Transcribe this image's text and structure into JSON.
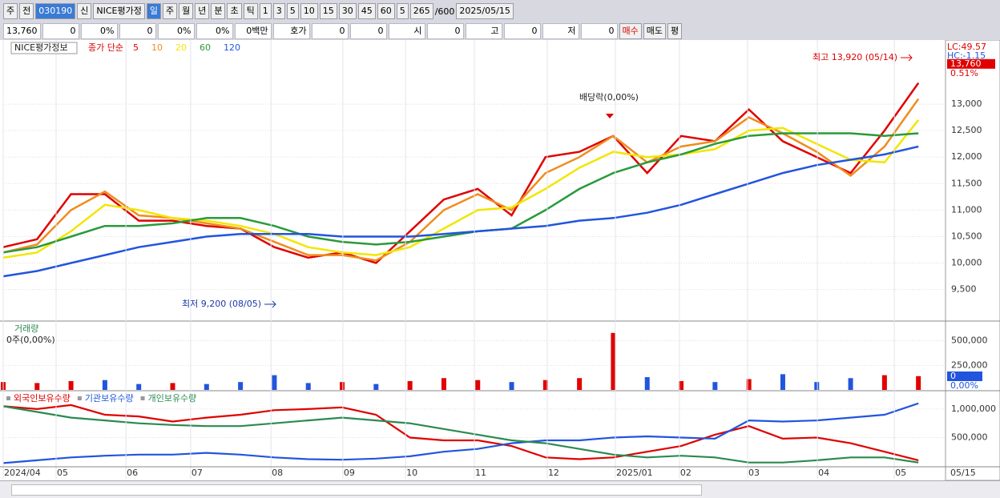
{
  "toolbar": {
    "market": "주",
    "prev": "전",
    "code": "030190",
    "name": "NICE평가정",
    "new": "신",
    "periods": [
      "일",
      "주",
      "월",
      "년",
      "분",
      "초",
      "틱"
    ],
    "intervals": [
      "1",
      "3",
      "5",
      "10",
      "15",
      "30",
      "45",
      "60"
    ],
    "count_select": "5",
    "count": "265",
    "max": "/600",
    "date": "2025/05/15"
  },
  "info_bar": {
    "cells": [
      "13,760",
      "0",
      "0%",
      "0",
      "0%",
      "0%",
      "0백만"
    ],
    "quote": [
      "호가",
      "0",
      "0"
    ],
    "ohl": [
      "시",
      "0",
      "고",
      "0",
      "저",
      "0"
    ],
    "buttons": [
      "매수",
      "매도",
      "평"
    ]
  },
  "chart_data": [
    {
      "type": "line",
      "title": "NICE평가정보",
      "legend_title": "종가 단순",
      "xlim": [
        0,
        27.8
      ],
      "ylim": [
        8920,
        14180
      ],
      "yticks": [
        {
          "value": 9500,
          "label": "9,500"
        },
        {
          "value": 10000,
          "label": "10,000"
        },
        {
          "value": 10500,
          "label": "10,500"
        },
        {
          "value": 11000,
          "label": "11,000"
        },
        {
          "value": 11500,
          "label": "11,500"
        },
        {
          "value": 12000,
          "label": "12,000"
        },
        {
          "value": 12500,
          "label": "12,500"
        },
        {
          "value": 13000,
          "label": "13,000"
        }
      ],
      "grid": true,
      "series": [
        {
          "name": "5",
          "color": "#e00000",
          "values": [
            10300,
            10450,
            11300,
            11300,
            10800,
            10800,
            10700,
            10650,
            10300,
            10100,
            10200,
            10000,
            10600,
            11200,
            11400,
            10900,
            12000,
            12100,
            12400,
            11700,
            12400,
            12300,
            12900,
            12300,
            12000,
            11700,
            12500,
            13400
          ]
        },
        {
          "name": "10",
          "color": "#f08c1e",
          "values": [
            10200,
            10350,
            11000,
            11350,
            10900,
            10850,
            10750,
            10650,
            10400,
            10150,
            10150,
            10050,
            10400,
            11000,
            11300,
            11000,
            11700,
            12000,
            12400,
            11900,
            12200,
            12300,
            12750,
            12450,
            12100,
            11650,
            12200,
            13100
          ]
        },
        {
          "name": "20",
          "color": "#f2e600",
          "values": [
            10100,
            10200,
            10600,
            11100,
            11000,
            10850,
            10800,
            10700,
            10550,
            10300,
            10200,
            10150,
            10300,
            10650,
            11000,
            11050,
            11400,
            11800,
            12100,
            12000,
            12050,
            12150,
            12500,
            12550,
            12250,
            11950,
            11900,
            12700
          ]
        },
        {
          "name": "60",
          "color": "#2a9a3a",
          "values": [
            10200,
            10300,
            10500,
            10700,
            10700,
            10750,
            10850,
            10850,
            10700,
            10500,
            10400,
            10350,
            10400,
            10500,
            10600,
            10650,
            11000,
            11400,
            11700,
            11900,
            12050,
            12250,
            12400,
            12450,
            12450,
            12450,
            12400,
            12450
          ]
        },
        {
          "name": "120",
          "color": "#2255dd",
          "values": [
            9750,
            9850,
            10000,
            10150,
            10300,
            10400,
            10500,
            10550,
            10550,
            10550,
            10500,
            10500,
            10500,
            10550,
            10600,
            10650,
            10700,
            10800,
            10850,
            10950,
            11100,
            11300,
            11500,
            11700,
            11850,
            11950,
            12050,
            12200
          ]
        }
      ],
      "annotations": [
        "최고 13,920 (05/14)",
        "최저 9,200 (08/05)",
        "배당락(0,00%)"
      ],
      "last_value": {
        "value": 13760,
        "label": "13,760"
      },
      "change": "0.51%",
      "lc": "LC:49.57",
      "hc": "HC:-1.15"
    },
    {
      "type": "bar",
      "title": "거래량",
      "subtitle": "0주(0,00%)",
      "xlim": [
        0,
        27.8
      ],
      "ylim": [
        0,
        660000
      ],
      "yticks": [
        {
          "value": 250000,
          "label": "250,000"
        },
        {
          "value": 500000,
          "label": "500,000"
        }
      ],
      "values": [
        80000,
        70000,
        90000,
        100000,
        60000,
        70000,
        60000,
        80000,
        150000,
        70000,
        80000,
        60000,
        90000,
        120000,
        100000,
        80000,
        100000,
        120000,
        580000,
        130000,
        90000,
        80000,
        110000,
        160000,
        80000,
        120000,
        150000,
        140000
      ],
      "colors": [
        "#e00000",
        "#e00000",
        "#e00000",
        "#2255dd",
        "#2255dd",
        "#e00000",
        "#2255dd",
        "#2255dd",
        "#2255dd",
        "#2255dd",
        "#e00000",
        "#2255dd",
        "#e00000",
        "#e00000",
        "#e00000",
        "#2255dd",
        "#e00000",
        "#e00000",
        "#e00000",
        "#2255dd",
        "#e00000",
        "#2255dd",
        "#e00000",
        "#2255dd",
        "#2255dd",
        "#2255dd",
        "#e00000",
        "#e00000"
      ],
      "last_label": "0",
      "last_pct": "0,00%"
    },
    {
      "type": "line",
      "xlim": [
        0,
        27.8
      ],
      "ylim": [
        0,
        1280000
      ],
      "yticks": [
        {
          "value": 500000,
          "label": "500,000"
        },
        {
          "value": 1000000,
          "label": "1,000,000"
        }
      ],
      "xticks": [
        {
          "value": 0,
          "label": "2024/04"
        },
        {
          "value": 1.56,
          "label": "05"
        },
        {
          "value": 3.62,
          "label": "06"
        },
        {
          "value": 5.53,
          "label": "07"
        },
        {
          "value": 7.9,
          "label": "08"
        },
        {
          "value": 10.02,
          "label": "09"
        },
        {
          "value": 11.87,
          "label": "10"
        },
        {
          "value": 13.9,
          "label": "11"
        },
        {
          "value": 16.05,
          "label": "12"
        },
        {
          "value": 18.06,
          "label": "2025/01"
        },
        {
          "value": 19.95,
          "label": "02"
        },
        {
          "value": 21.96,
          "label": "03"
        },
        {
          "value": 24.02,
          "label": "04"
        },
        {
          "value": 26.29,
          "label": "05"
        }
      ],
      "end_label": "05/15",
      "series": [
        {
          "name": "외국인보유수량",
          "color": "#e00000",
          "values": [
            1050000,
            1000000,
            1070000,
            900000,
            870000,
            780000,
            850000,
            900000,
            980000,
            1000000,
            1030000,
            900000,
            500000,
            450000,
            450000,
            350000,
            150000,
            120000,
            150000,
            250000,
            350000,
            550000,
            700000,
            480000,
            500000,
            400000,
            250000,
            100000
          ]
        },
        {
          "name": "기관보유수량",
          "color": "#2255dd",
          "values": [
            50000,
            100000,
            150000,
            180000,
            200000,
            200000,
            230000,
            200000,
            150000,
            120000,
            110000,
            130000,
            170000,
            250000,
            300000,
            400000,
            450000,
            450000,
            500000,
            520000,
            500000,
            480000,
            800000,
            780000,
            800000,
            850000,
            900000,
            1100000
          ]
        },
        {
          "name": "개인보유수량",
          "color": "#2a8a50",
          "values": [
            1050000,
            950000,
            850000,
            800000,
            750000,
            720000,
            700000,
            700000,
            750000,
            800000,
            850000,
            800000,
            750000,
            650000,
            550000,
            450000,
            400000,
            300000,
            200000,
            150000,
            180000,
            150000,
            60000,
            60000,
            100000,
            150000,
            150000,
            60000
          ]
        }
      ]
    }
  ]
}
